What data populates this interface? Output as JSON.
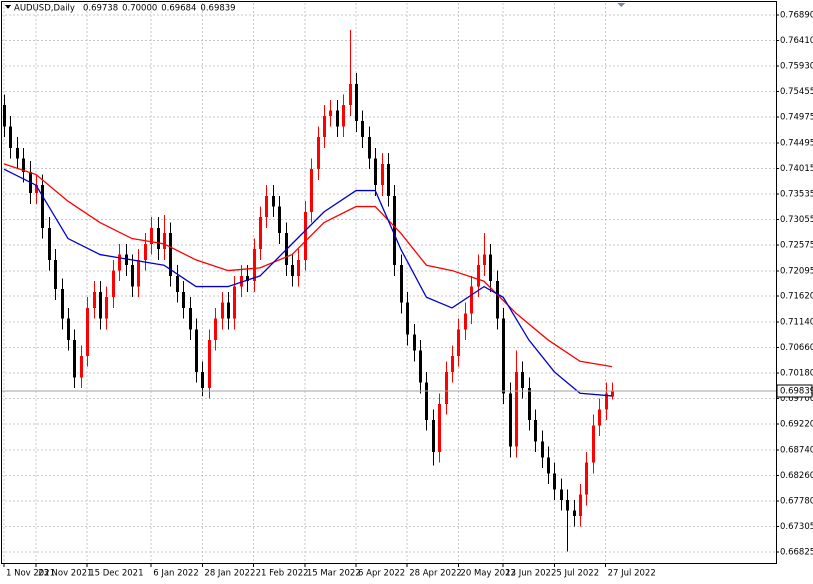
{
  "chart_data": {
    "type": "candlestick",
    "title": "AUDUSD,Daily",
    "quote_labels": [
      "0.69738",
      "0.70000",
      "0.69684",
      "0.69839"
    ],
    "up_color": "#ff0000",
    "down_color": "#000000",
    "grid": true,
    "ylim": [
      0.66619,
      0.77115
    ],
    "xlim": [
      -0.47,
      120.62
    ],
    "yticks": [
      {
        "value": 0.7689,
        "label": "0.76890"
      },
      {
        "value": 0.7641,
        "label": "0.76410"
      },
      {
        "value": 0.7593,
        "label": "0.75930"
      },
      0.75455,
      0.74975,
      0.74495,
      0.74015,
      0.73535,
      0.73055,
      0.72575,
      0.72095,
      {
        "value": 0.7162,
        "label": "0.71620"
      },
      {
        "value": 0.7114,
        "label": "0.71140"
      },
      {
        "value": 0.7066,
        "label": "0.70660"
      },
      {
        "value": 0.7018,
        "label": "0.70180"
      },
      {
        "value": 0.697,
        "label": "0.69700"
      },
      {
        "value": 0.6922,
        "label": "0.69220"
      },
      {
        "value": 0.6874,
        "label": "0.68740"
      },
      {
        "value": 0.6826,
        "label": "0.68260"
      },
      {
        "value": 0.6778,
        "label": "0.67780"
      },
      0.67305,
      0.66825
    ],
    "xticks": [
      {
        "value": 0,
        "label": "1 Nov 2021"
      },
      {
        "value": 5,
        "label": "23 Nov 2021"
      },
      {
        "value": 13,
        "label": "15 Dec 2021"
      },
      {
        "value": 23,
        "label": "6 Jan 2022"
      },
      {
        "value": 31,
        "label": "28 Jan 2022"
      },
      {
        "value": 39,
        "label": "21 Feb 2022"
      },
      {
        "value": 47,
        "label": "15 Mar 2022"
      },
      {
        "value": 55,
        "label": "6 Apr 2022"
      },
      {
        "value": 63,
        "label": "28 Apr 2022"
      },
      {
        "value": 71,
        "label": "20 May 2022"
      },
      {
        "value": 78,
        "label": "13 Jun 2022"
      },
      {
        "value": 86,
        "label": "5 Jul 2022"
      },
      {
        "value": 94,
        "label": "27 Jul 2022"
      }
    ],
    "open": [
      0.752,
      0.748,
      0.744,
      0.742,
      0.7395,
      0.7355,
      0.737,
      0.729,
      0.723,
      0.7175,
      0.712,
      0.708,
      0.701,
      0.705,
      0.714,
      0.717,
      0.712,
      0.716,
      0.721,
      0.724,
      0.722,
      0.718,
      0.723,
      0.726,
      0.729,
      0.725,
      0.728,
      0.72,
      0.717,
      0.714,
      0.71,
      0.702,
      0.699,
      0.708,
      0.712,
      0.715,
      0.712,
      0.718,
      0.72,
      0.719,
      0.725,
      0.731,
      0.735,
      0.733,
      0.728,
      0.722,
      0.72,
      0.723,
      0.732,
      0.74,
      0.746,
      0.75,
      0.751,
      0.748,
      0.752,
      0.756,
      0.749,
      0.746,
      0.742,
      0.737,
      0.741,
      0.735,
      0.722,
      0.715,
      0.709,
      0.706,
      0.7,
      0.693,
      0.687,
      0.696,
      0.702,
      0.705,
      0.71,
      0.713,
      0.718,
      0.722,
      0.724,
      0.719,
      0.712,
      0.698,
      0.688,
      0.702,
      0.699,
      0.693,
      0.689,
      0.686,
      0.683,
      0.68,
      0.678,
      0.676,
      0.675,
      0.679,
      0.685,
      0.692,
      0.695,
      0.69738
    ],
    "high": [
      0.754,
      0.75,
      0.746,
      0.744,
      0.7415,
      0.739,
      0.739,
      0.731,
      0.725,
      0.7195,
      0.714,
      0.71,
      0.707,
      0.716,
      0.719,
      0.719,
      0.718,
      0.723,
      0.726,
      0.726,
      0.724,
      0.725,
      0.728,
      0.731,
      0.731,
      0.7314,
      0.73,
      0.722,
      0.719,
      0.716,
      0.712,
      0.704,
      0.71,
      0.714,
      0.717,
      0.717,
      0.72,
      0.722,
      0.722,
      0.727,
      0.733,
      0.737,
      0.737,
      0.735,
      0.73,
      0.724,
      0.725,
      0.734,
      0.742,
      0.748,
      0.752,
      0.753,
      0.753,
      0.754,
      0.7661,
      0.758,
      0.751,
      0.748,
      0.744,
      0.743,
      0.743,
      0.737,
      0.724,
      0.717,
      0.711,
      0.708,
      0.702,
      0.695,
      0.698,
      0.704,
      0.707,
      0.712,
      0.715,
      0.72,
      0.724,
      0.728,
      0.726,
      0.721,
      0.714,
      0.7,
      0.706,
      0.704,
      0.701,
      0.695,
      0.691,
      0.688,
      0.685,
      0.682,
      0.68,
      0.678,
      0.681,
      0.687,
      0.694,
      0.697,
      0.7,
      0.7
    ],
    "low": [
      0.746,
      0.742,
      0.74,
      0.7375,
      0.7335,
      0.7335,
      0.727,
      0.721,
      0.7155,
      0.71,
      0.706,
      0.699,
      0.699,
      0.703,
      0.712,
      0.71,
      0.71,
      0.714,
      0.719,
      0.72,
      0.716,
      0.716,
      0.721,
      0.724,
      0.723,
      0.723,
      0.718,
      0.715,
      0.712,
      0.708,
      0.7,
      0.6975,
      0.697,
      0.706,
      0.71,
      0.71,
      0.71,
      0.716,
      0.717,
      0.717,
      0.723,
      0.729,
      0.731,
      0.726,
      0.72,
      0.718,
      0.718,
      0.721,
      0.73,
      0.738,
      0.744,
      0.748,
      0.746,
      0.746,
      0.75,
      0.747,
      0.744,
      0.74,
      0.735,
      0.735,
      0.733,
      0.72,
      0.713,
      0.707,
      0.704,
      0.698,
      0.691,
      0.6845,
      0.685,
      0.694,
      0.7,
      0.703,
      0.708,
      0.711,
      0.716,
      0.72,
      0.717,
      0.71,
      0.696,
      0.686,
      0.686,
      0.697,
      0.691,
      0.687,
      0.684,
      0.681,
      0.678,
      0.676,
      0.6683,
      0.673,
      0.673,
      0.677,
      0.683,
      0.69,
      0.693,
      0.69684
    ],
    "close": [
      0.748,
      0.744,
      0.742,
      0.7395,
      0.7355,
      0.737,
      0.729,
      0.723,
      0.7175,
      0.712,
      0.708,
      0.701,
      0.705,
      0.714,
      0.717,
      0.712,
      0.716,
      0.721,
      0.724,
      0.722,
      0.718,
      0.723,
      0.726,
      0.729,
      0.725,
      0.728,
      0.72,
      0.717,
      0.714,
      0.71,
      0.702,
      0.699,
      0.708,
      0.712,
      0.715,
      0.712,
      0.718,
      0.72,
      0.719,
      0.725,
      0.731,
      0.735,
      0.733,
      0.728,
      0.722,
      0.72,
      0.723,
      0.732,
      0.74,
      0.746,
      0.75,
      0.751,
      0.748,
      0.752,
      0.756,
      0.749,
      0.746,
      0.742,
      0.737,
      0.741,
      0.735,
      0.722,
      0.715,
      0.709,
      0.706,
      0.7,
      0.693,
      0.687,
      0.696,
      0.702,
      0.705,
      0.71,
      0.713,
      0.718,
      0.722,
      0.724,
      0.719,
      0.712,
      0.698,
      0.688,
      0.702,
      0.699,
      0.693,
      0.689,
      0.686,
      0.683,
      0.68,
      0.678,
      0.676,
      0.675,
      0.679,
      0.685,
      0.692,
      0.695,
      0.698,
      0.69839
    ],
    "series": [
      {
        "color": "#ff0000",
        "x": [
          0,
          5,
          10,
          15,
          20,
          25,
          30,
          35,
          40,
          45,
          50,
          55,
          58,
          62,
          66,
          70,
          75,
          80,
          85,
          90,
          95
        ],
        "values": [
          0.741,
          0.739,
          0.734,
          0.73,
          0.727,
          0.726,
          0.723,
          0.721,
          0.7215,
          0.724,
          0.73,
          0.733,
          0.733,
          0.728,
          0.722,
          0.721,
          0.719,
          0.713,
          0.708,
          0.704,
          0.703
        ]
      },
      {
        "color": "#0000cc",
        "x": [
          0,
          5,
          10,
          15,
          20,
          25,
          30,
          35,
          40,
          45,
          50,
          55,
          58,
          62,
          66,
          70,
          75,
          78,
          82,
          86,
          90,
          95
        ],
        "values": [
          0.74,
          0.737,
          0.727,
          0.724,
          0.723,
          0.722,
          0.718,
          0.718,
          0.72,
          0.726,
          0.732,
          0.736,
          0.736,
          0.725,
          0.716,
          0.714,
          0.718,
          0.716,
          0.708,
          0.702,
          0.698,
          0.6975
        ]
      }
    ]
  }
}
